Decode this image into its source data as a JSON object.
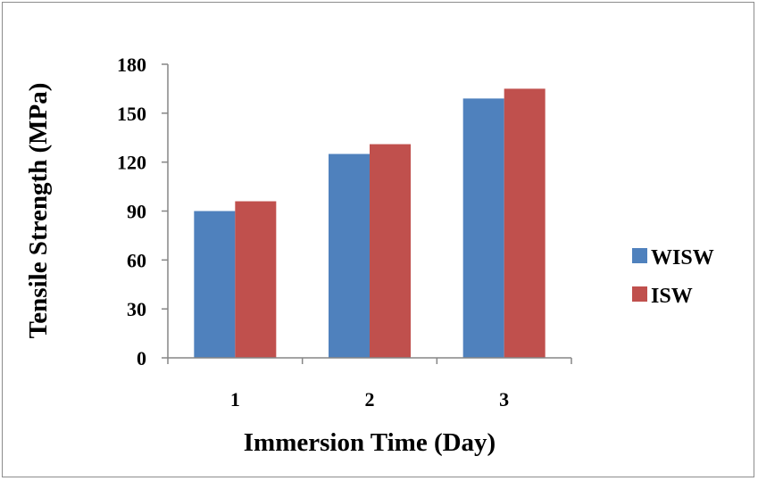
{
  "chart_data": {
    "type": "bar",
    "title": "",
    "xlabel": "Immersion Time (Day)",
    "ylabel": "Tensile Strength (MPa)",
    "categories": [
      "1",
      "2",
      "3"
    ],
    "series": [
      {
        "name": "WISW",
        "values": [
          90,
          125,
          159
        ],
        "color": "#4f81bd"
      },
      {
        "name": "ISW",
        "values": [
          96,
          131,
          165
        ],
        "color": "#c0504d"
      }
    ],
    "ylim": [
      0,
      180
    ],
    "yticks": [
      "0",
      "30",
      "60",
      "90",
      "120",
      "150",
      "180"
    ],
    "grid": false,
    "legend_position": "right"
  }
}
